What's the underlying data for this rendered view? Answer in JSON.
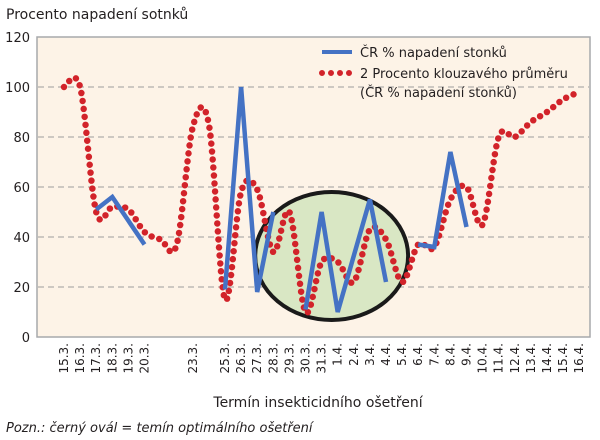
{
  "chart_data": {
    "type": "line",
    "ylabel": "Procento napadení sotnků",
    "xlabel": "Termín insekticidního ošetření",
    "note": "Pozn.: černý ovál = temín optimálního ošetření",
    "ylim": [
      0,
      120
    ],
    "yticks": [
      0,
      20,
      40,
      60,
      80,
      100,
      120
    ],
    "grid": "horizontal dashed",
    "legend_position": "top-right",
    "x_ticks": [
      "15.3.",
      "16.3.",
      "17.3.",
      "18.3.",
      "19.3.",
      "20.3.",
      "23.3.",
      "25.3.",
      "26.3.",
      "27.3.",
      "28.3.",
      "29.3.",
      "30.3.",
      "31.3.",
      "1.4.",
      "2.4.",
      "3.4.",
      "4.4.",
      "5.4.",
      "6.4.",
      "7.4.",
      "8.4.",
      "9.4.",
      "10.4.",
      "11.4.",
      "12.4.",
      "13.4.",
      "14.4.",
      "15.4.",
      "16.4."
    ],
    "series": [
      {
        "name": "ČR % napadení stonků",
        "color": "#4472c4",
        "style": "solid",
        "points": [
          [
            "17.3.",
            51
          ],
          [
            "18.3.",
            56
          ],
          [
            "20.3.",
            37
          ],
          null,
          [
            "25.3.",
            19
          ],
          [
            "26.3.",
            100
          ],
          [
            "27.3.",
            18
          ],
          [
            "28.3.",
            50
          ],
          null,
          [
            "30.3.",
            11
          ],
          [
            "31.3.",
            50
          ],
          [
            "1.4.",
            10
          ],
          [
            "3.4.",
            55
          ],
          [
            "4.4.",
            22
          ],
          null,
          [
            "6.4.",
            37
          ],
          [
            "7.4.",
            36
          ],
          [
            "8.4.",
            74
          ],
          [
            "9.4.",
            44
          ]
        ]
      },
      {
        "name": "2 Procento klouzavého průměru",
        "name_line2": "(ČR % napadení stonků)",
        "color": "#d2232a",
        "style": "dotted",
        "points": [
          [
            "15.3.",
            100
          ],
          [
            "16.3.",
            100
          ],
          [
            "17.3.",
            50
          ],
          [
            "18.3.",
            52
          ],
          [
            "19.3.",
            51
          ],
          [
            "20.3.",
            42
          ],
          [
            "21.3.",
            39
          ],
          [
            "22.3.",
            37
          ],
          [
            "23.3.",
            84
          ],
          [
            "24.3.",
            85
          ],
          [
            "25.3.",
            15
          ],
          [
            "26.3.",
            58
          ],
          [
            "27.3.",
            59
          ],
          [
            "28.3.",
            34
          ],
          [
            "29.3.",
            50
          ],
          [
            "30.3.",
            10
          ],
          [
            "31.3.",
            30
          ],
          [
            "1.4.",
            30
          ],
          [
            "2.4.",
            22
          ],
          [
            "3.4.",
            43
          ],
          [
            "4.4.",
            39
          ],
          [
            "5.4.",
            22
          ],
          [
            "6.4.",
            37
          ],
          [
            "7.4.",
            36
          ],
          [
            "8.4.",
            55
          ],
          [
            "9.4.",
            60
          ],
          [
            "10.4.",
            45
          ],
          [
            "11.4.",
            80
          ],
          [
            "12.4.",
            80
          ],
          [
            "13.4.",
            86
          ],
          [
            "14.4.",
            90
          ],
          [
            "15.4.",
            95
          ],
          [
            "16.4.",
            98
          ]
        ]
      }
    ],
    "annotation": {
      "shape": "ellipse",
      "from": "27.3.",
      "to": "5.4.",
      "fill": "#d9e7c4",
      "stroke": "#1a1a1a"
    }
  }
}
